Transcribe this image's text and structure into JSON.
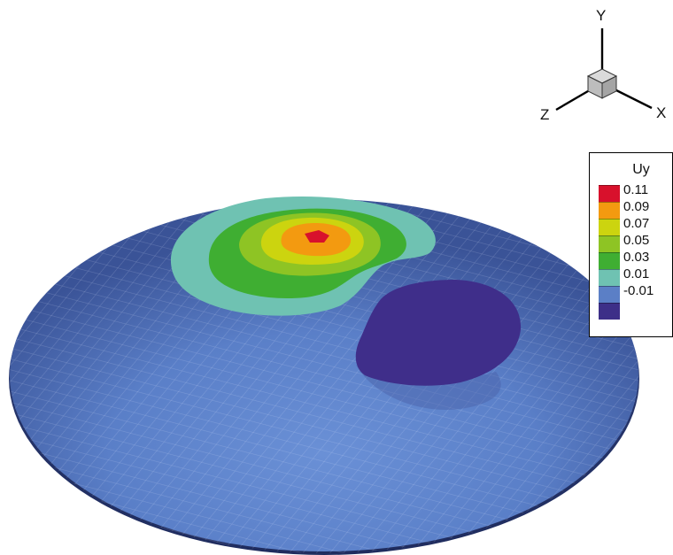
{
  "axes": {
    "x_label": "X",
    "y_label": "Y",
    "z_label": "Z"
  },
  "legend": {
    "title": "Uy",
    "levels": [
      {
        "label": "0.11",
        "color": "#d8112c"
      },
      {
        "label": "0.09",
        "color": "#f39a10"
      },
      {
        "label": "0.07",
        "color": "#ccd40f"
      },
      {
        "label": "0.05",
        "color": "#8ec424"
      },
      {
        "label": "0.03",
        "color": "#3fae32"
      },
      {
        "label": "0.01",
        "color": "#6fc2b2"
      },
      {
        "label": "-0.01",
        "color": "#5b7fc6"
      },
      {
        "label": "",
        "color": "#3d2f88"
      }
    ]
  },
  "colors": {
    "surface_light": "#5d84cc",
    "surface_dark": "#334a8f",
    "depression": "#3f2e8a",
    "mesh": "#e6ecff",
    "cube": "#c4c4c4"
  }
}
